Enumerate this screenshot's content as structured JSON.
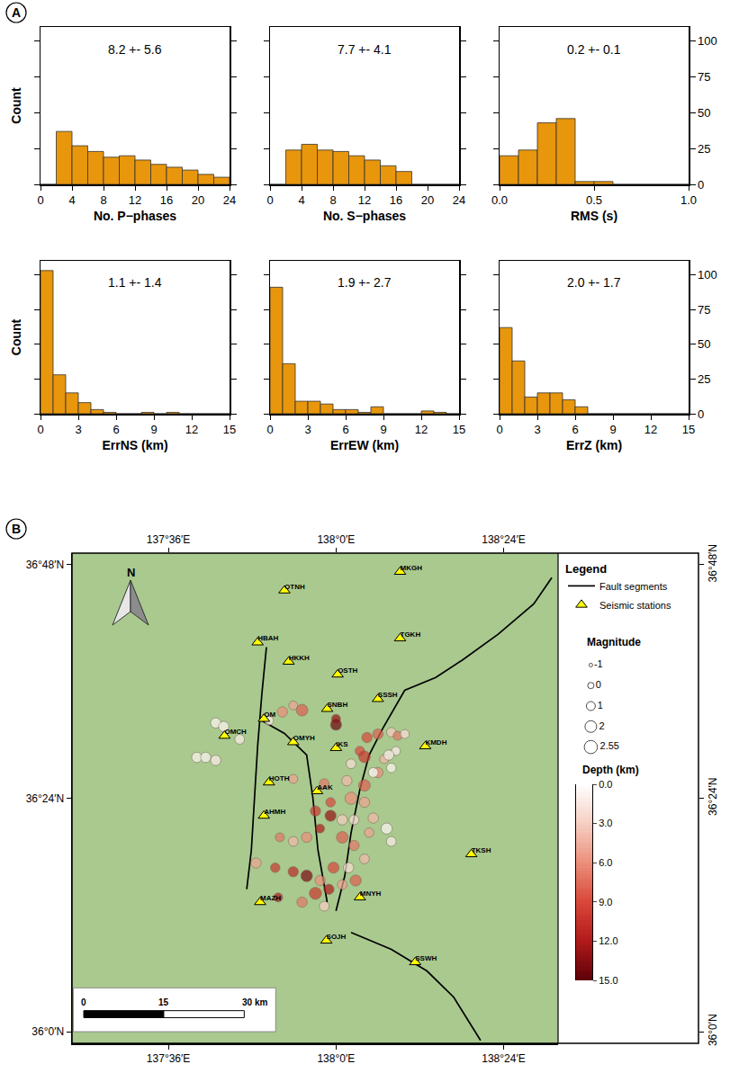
{
  "chart_data": [
    {
      "type": "histogram",
      "panel": "A",
      "x_label": "No. P−phases",
      "y_label": "Count",
      "annotation": "8.2 +- 5.6",
      "bins": [
        0,
        2,
        4,
        6,
        8,
        10,
        12,
        14,
        16,
        18,
        20,
        22,
        24
      ],
      "counts": [
        0,
        37,
        27,
        23,
        19,
        20,
        17,
        14,
        12,
        10,
        7,
        5
      ],
      "color": "#e8960c",
      "xlim": [
        0,
        24
      ],
      "xticks": [
        0,
        4,
        8,
        12,
        16,
        20,
        24
      ],
      "ylim": [
        0,
        110
      ],
      "yticks": [
        0,
        25,
        50,
        75,
        100
      ],
      "tick_labels": "x"
    },
    {
      "type": "histogram",
      "x_label": "No. S−phases",
      "annotation": "7.7 +- 4.1",
      "bins": [
        0,
        2,
        4,
        6,
        8,
        10,
        12,
        14,
        16,
        18,
        20,
        22,
        24
      ],
      "counts": [
        0,
        24,
        28,
        24,
        23,
        20,
        17,
        13,
        9,
        0,
        0,
        0
      ],
      "color": "#e8960c",
      "xlim": [
        0,
        24
      ],
      "xticks": [
        0,
        4,
        8,
        12,
        16,
        20,
        24
      ],
      "ylim": [
        0,
        110
      ],
      "yticks": [
        0,
        25,
        50,
        75,
        100
      ],
      "tick_labels": "x"
    },
    {
      "type": "histogram",
      "x_label": "RMS (s)",
      "annotation": "0.2 +- 0.1",
      "bins": [
        0,
        0.1,
        0.2,
        0.3,
        0.4,
        0.5,
        0.6,
        0.7,
        0.8,
        0.9,
        1.0
      ],
      "counts": [
        20,
        24,
        43,
        46,
        2,
        2,
        0,
        0,
        0,
        0
      ],
      "color": "#e8960c",
      "xlim": [
        0,
        1
      ],
      "xticks": [
        {
          "value": 0,
          "label": "0.0"
        },
        0.5,
        {
          "value": 1,
          "label": "1.0"
        }
      ],
      "ylim": [
        0,
        110
      ],
      "yticks": [
        0,
        25,
        50,
        75,
        100
      ]
    },
    {
      "type": "histogram",
      "x_label": "ErrNS (km)",
      "y_label": "Count",
      "annotation": "1.1 +- 1.4",
      "bins": [
        0,
        1,
        2,
        3,
        4,
        5,
        6,
        7,
        8,
        9,
        10,
        11,
        12,
        13,
        14,
        15
      ],
      "counts": [
        103,
        28,
        15,
        8,
        3,
        1,
        0,
        0,
        1,
        0,
        1,
        0,
        0,
        0,
        0
      ],
      "color": "#e8960c",
      "xlim": [
        0,
        15
      ],
      "xticks": [
        0,
        3,
        6,
        9,
        12,
        15
      ],
      "ylim": [
        0,
        110
      ],
      "yticks": [
        0,
        25,
        50,
        75,
        100
      ],
      "tick_labels": "x"
    },
    {
      "type": "histogram",
      "x_label": "ErrEW (km)",
      "annotation": "1.9 +- 2.7",
      "bins": [
        0,
        1,
        2,
        3,
        4,
        5,
        6,
        7,
        8,
        9,
        10,
        11,
        12,
        13,
        14,
        15
      ],
      "counts": [
        91,
        36,
        9,
        9,
        7,
        3,
        3,
        1,
        5,
        0,
        0,
        0,
        2,
        1,
        0
      ],
      "color": "#e8960c",
      "xlim": [
        0,
        15
      ],
      "xticks": [
        0,
        3,
        6,
        9,
        12,
        15
      ],
      "ylim": [
        0,
        110
      ],
      "yticks": [
        0,
        25,
        50,
        75,
        100
      ],
      "tick_labels": "x"
    },
    {
      "type": "histogram",
      "x_label": "ErrZ (km)",
      "annotation": "2.0 +- 1.7",
      "bins": [
        0,
        1,
        2,
        3,
        4,
        5,
        6,
        7,
        8,
        9,
        10,
        11,
        12,
        13,
        14,
        15
      ],
      "counts": [
        62,
        38,
        12,
        15,
        15,
        10,
        5,
        0,
        0,
        0,
        0,
        0,
        0,
        0,
        0
      ],
      "color": "#e8960c",
      "xlim": [
        0,
        15
      ],
      "xticks": [
        0,
        3,
        6,
        9,
        12,
        15
      ],
      "ylim": [
        0,
        110
      ],
      "yticks": [
        0,
        25,
        50,
        75,
        100
      ]
    },
    {
      "type": "map",
      "panel": "B",
      "xlim": [
        137.37,
        138.53
      ],
      "ylim": [
        35.98,
        36.82
      ],
      "xticks": [
        {
          "value": 137.6,
          "label": "137°36′E"
        },
        {
          "value": 138.0,
          "label": "138°0′E"
        },
        {
          "value": 138.4,
          "label": "138°24′E"
        }
      ],
      "yticks": [
        {
          "value": 36.0,
          "label": "36°0′N"
        },
        {
          "value": 36.4,
          "label": "36°24′N"
        },
        {
          "value": 36.8,
          "label": "36°48′N"
        }
      ],
      "legend_title": "Legend",
      "legend": "right",
      "north_label": "N",
      "series": [
        {
          "name": "Seismic stations",
          "type": "scatter",
          "marker": "triangle",
          "color": "#ffff00",
          "labels": [
            "MKGH",
            "OTNH",
            "TGKH",
            "HBAH",
            "HKKH",
            "OSTH",
            "SSSH",
            "SNBH",
            "OM",
            "OMCH",
            "OMYH",
            "IKS",
            "KMDH",
            "HOTH",
            "AAK",
            "AHMH",
            "TKSH",
            "MAZH",
            "MNYH",
            "SOJH",
            "SSWH"
          ],
          "lon": [
            138.153,
            137.877,
            138.153,
            137.813,
            137.887,
            138.004,
            138.1,
            137.979,
            137.828,
            137.734,
            137.898,
            138.0,
            138.213,
            137.84,
            137.955,
            137.828,
            138.323,
            137.819,
            138.057,
            137.977,
            138.189
          ],
          "lat": [
            36.788,
            36.756,
            36.674,
            36.667,
            36.634,
            36.612,
            36.57,
            36.553,
            36.536,
            36.507,
            36.496,
            36.486,
            36.489,
            36.427,
            36.412,
            36.37,
            36.304,
            36.222,
            36.23,
            36.156,
            36.119
          ]
        },
        {
          "name": "Fault segments",
          "type": "line",
          "color": "#000000",
          "segments": [
            {
              "lon": [
                138.515,
                138.472,
                138.387,
                138.302,
                138.238,
                138.164,
                138.111,
                138.079,
                138.057,
                138.036,
                138.021,
                138.0
              ],
              "lat": [
                36.778,
                36.733,
                36.681,
                36.637,
                36.607,
                36.585,
                36.519,
                36.474,
                36.415,
                36.341,
                36.267,
                36.207
              ]
            },
            {
              "lon": [
                138.036,
                138.132,
                138.217,
                138.281,
                138.345
              ],
              "lat": [
                36.17,
                36.141,
                36.104,
                36.059,
                35.985
              ]
            },
            {
              "lon": [
                137.834,
                137.823,
                137.813,
                137.806,
                137.798,
                137.787
              ],
              "lat": [
                36.659,
                36.578,
                36.489,
                36.4,
                36.311,
                36.244
              ]
            },
            {
              "lon": [
                137.823,
                137.877,
                137.93,
                137.945,
                137.957,
                137.979
              ],
              "lat": [
                36.533,
                36.511,
                36.474,
                36.4,
                36.311,
                36.222
              ]
            }
          ]
        },
        {
          "type": "scatter",
          "marker": "circle",
          "lon": [
            137.713,
            137.732,
            137.668,
            137.689,
            137.713,
            137.77,
            137.84,
            137.872,
            137.919,
            137.898,
            138.0,
            138.0,
            138.074,
            138.1,
            138.132,
            138.147,
            138.057,
            138.115,
            138.143,
            138.036,
            138.068,
            138.1,
            138.132,
            138.126,
            137.898,
            137.972,
            138.026,
            138.068,
            138.036,
            138.068,
            137.987,
            137.951,
            137.987,
            138.015,
            138.043,
            138.089,
            138.121,
            138.079,
            138.132,
            138.043,
            138.015,
            137.962,
            137.93,
            137.898,
            137.866,
            137.809,
            137.855,
            137.898,
            137.93,
            137.962,
            137.994,
            138.03,
            138.068,
            137.951,
            137.983,
            138.015,
            138.047,
            137.919,
            137.972,
            137.862,
            138.089,
            138.164
          ],
          "lat": [
            36.529,
            36.523,
            36.47,
            36.47,
            36.465,
            36.501,
            36.533,
            36.548,
            36.551,
            36.559,
            36.526,
            36.536,
            36.504,
            36.51,
            36.513,
            36.507,
            36.481,
            36.467,
            36.481,
            36.459,
            36.471,
            36.444,
            36.452,
            36.474,
            36.433,
            36.425,
            36.43,
            36.422,
            36.4,
            36.393,
            36.393,
            36.378,
            36.37,
            36.363,
            36.363,
            36.366,
            36.348,
            36.341,
            36.326,
            36.319,
            36.333,
            36.348,
            36.333,
            36.326,
            36.333,
            36.289,
            36.281,
            36.274,
            36.267,
            36.259,
            36.281,
            36.281,
            36.296,
            36.237,
            36.244,
            36.252,
            36.259,
            36.222,
            36.215,
            36.23,
            36.444,
            36.51
          ],
          "magnitude": [
            1.5,
            1.5,
            1.5,
            1.5,
            1.5,
            1.3,
            1.0,
            1.5,
            2.0,
            1.0,
            1.8,
            1.0,
            1.5,
            1.5,
            1.2,
            1.0,
            1.2,
            1.0,
            1.0,
            1.3,
            2.0,
            1.5,
            1.2,
            1.5,
            1.0,
            1.3,
            1.5,
            2.0,
            2.2,
            1.5,
            1.2,
            1.5,
            1.8,
            1.5,
            1.3,
            1.5,
            1.8,
            1.2,
            1.3,
            1.5,
            2.0,
            1.0,
            1.5,
            1.3,
            1.0,
            1.5,
            1.2,
            1.5,
            2.0,
            1.5,
            1.8,
            1.5,
            1.3,
            2.2,
            1.5,
            1.3,
            1.8,
            1.5,
            1.3,
            1.0,
            1.3,
            1.0
          ],
          "depth": [
            0.5,
            0.5,
            0.5,
            0.5,
            1,
            1,
            1,
            6,
            8,
            5,
            14.5,
            13,
            9,
            8,
            3,
            7,
            9,
            4,
            1,
            2,
            10,
            6,
            0.5,
            1,
            5,
            7,
            4,
            8,
            6,
            5,
            9,
            10,
            13,
            3,
            2,
            4,
            0.5,
            5,
            1,
            7,
            8,
            12,
            6,
            4,
            7,
            5,
            10,
            11,
            14,
            6,
            9,
            2,
            4,
            10,
            12,
            5,
            8,
            7,
            3,
            12,
            0,
            2
          ]
        }
      ],
      "magnitude_legend": {
        "title": "Magnitude",
        "values": [
          -1,
          0,
          1,
          2,
          2.55
        ]
      },
      "depth_colorbar": {
        "title": "Depth (km)",
        "range": [
          0,
          15
        ],
        "ticks": [
          {
            "value": 0,
            "label": "0.0"
          },
          {
            "value": 3,
            "label": "3.0"
          },
          {
            "value": 6,
            "label": "6.0"
          },
          {
            "value": 9,
            "label": "9.0"
          },
          {
            "value": 12,
            "label": "12.0"
          },
          {
            "value": 15,
            "label": "15.0"
          }
        ]
      },
      "scale_bar": {
        "lat": 36.03,
        "ticks": [
          {
            "value": 137.398,
            "label": "0"
          },
          {
            "value": 137.589,
            "label": "15"
          },
          {
            "value": 137.781,
            "label": "30 km"
          }
        ]
      }
    }
  ]
}
